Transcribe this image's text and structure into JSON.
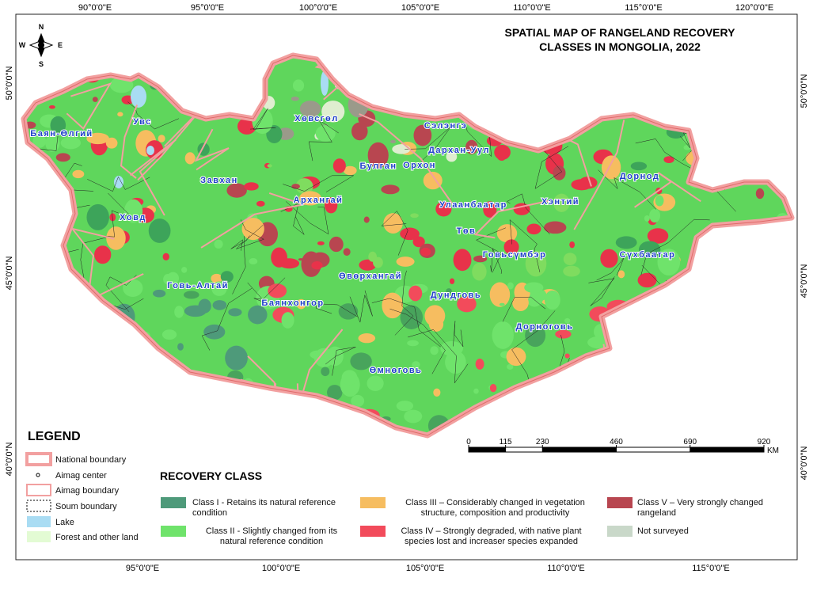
{
  "map": {
    "title": [
      "SPATIAL MAP OF RANGELAND RECOVERY",
      "CLASSES IN MONGOLIA, 2022"
    ],
    "compass": {
      "n": "N",
      "e": "E",
      "s": "S",
      "w": "W"
    },
    "graticule": {
      "top": [
        "90°0'0\"E",
        "95°0'0\"E",
        "100°0'0\"E",
        "105°0'0\"E",
        "110°0'0\"E",
        "115°0'0\"E",
        "120°0'0\"E"
      ],
      "bottom": [
        "95°0'0\"E",
        "100°0'0\"E",
        "105°0'0\"E",
        "110°0'0\"E",
        "115°0'0\"E"
      ],
      "left": [
        "50°0'0\"N",
        "45°0'0\"N",
        "40°0'0\"N"
      ],
      "right": [
        "50°0'0\"N",
        "45°0'0\"N",
        "40°0'0\"N"
      ]
    },
    "aimags": [
      "Баян-Өлгий",
      "Увс",
      "Хөвсгөл",
      "Сэлэнгэ",
      "Дархан-Уул",
      "Булган",
      "Орхон",
      "Завхан",
      "Архангай",
      "Улаанбаатар",
      "Хэнтий",
      "Дорнод",
      "Ховд",
      "Төв",
      "Говьсүмбэр",
      "Сүхбаатар",
      "Өвөрхангай",
      "Говь-Алтай",
      "Баянхонгор",
      "Дундговь",
      "Дорноговь",
      "Өмнөговь"
    ],
    "scale": {
      "ticks": [
        0,
        115,
        230,
        460,
        690,
        920
      ],
      "unit": "KM"
    }
  },
  "legend": {
    "title": "LEGEND",
    "items": [
      "National boundary",
      "Aimag center",
      "Aimag boundary",
      "Soum boundary",
      "Lake",
      "Forest and other land"
    ]
  },
  "recovery_class": {
    "title": "RECOVERY CLASS",
    "items": [
      "Class I - Retains its natural reference condition",
      "Class II - Slightly changed from its natural reference condition",
      "Class III – Considerably changed in vegetation structure, composition and productivity",
      "Class IV – Strongly degraded, with native plant species lost and increaser species expanded",
      "Class V – Very strongly changed rangeland",
      "Not surveyed"
    ]
  }
}
